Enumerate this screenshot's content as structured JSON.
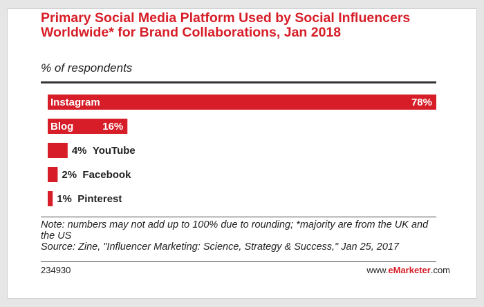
{
  "colors": {
    "accent": "#d71e28",
    "background": "#ffffff",
    "text": "#222222"
  },
  "chart_data": {
    "type": "bar",
    "orientation": "horizontal",
    "title": "Primary Social Media Platform Used by Social Influencers Worldwide* for Brand Collaborations, Jan 2018",
    "subtitle": "% of respondents",
    "categories": [
      "Instagram",
      "Blog",
      "YouTube",
      "Facebook",
      "Pinterest"
    ],
    "values": [
      78,
      16,
      4,
      2,
      1
    ],
    "value_labels": [
      "78%",
      "16%",
      "4%",
      "2%",
      "1%"
    ],
    "unit": "%",
    "xlim": [
      0,
      78
    ],
    "grid": false,
    "legend": "none"
  },
  "footer": {
    "note": "Note: numbers may not add up to 100% due to rounding; *majority are from the UK and the US",
    "source": "Source: Zine, \"Influencer Marketing: Science, Strategy & Success,\" Jan 25, 2017",
    "chart_id": "234930",
    "brand_prefix": "www.",
    "brand_name": "eMarketer",
    "brand_suffix": ".com"
  }
}
